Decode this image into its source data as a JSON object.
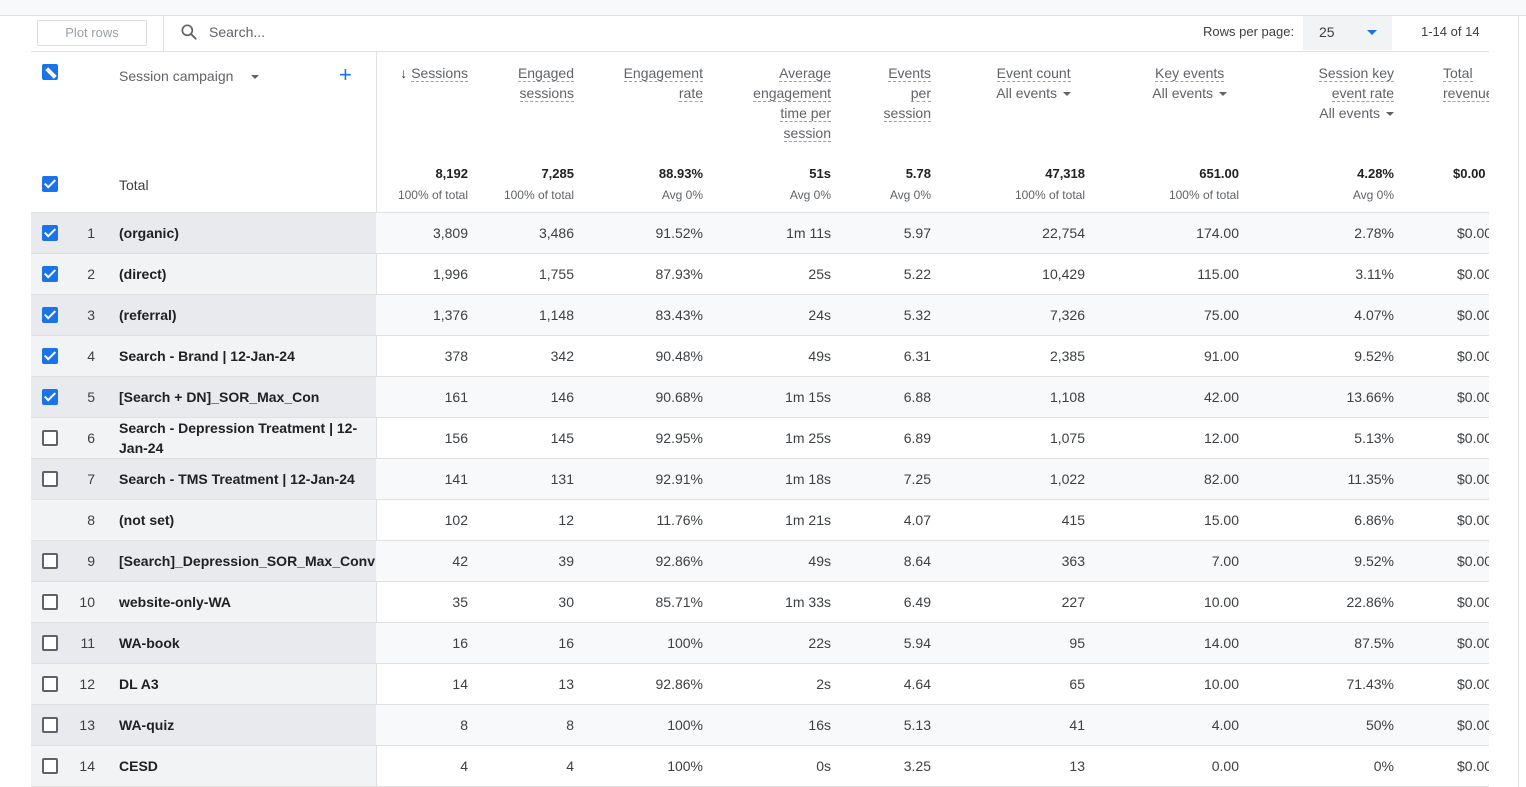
{
  "toolbar": {
    "plot_rows_label": "Plot rows",
    "search_placeholder": "Search...",
    "rows_per_page_label": "Rows per page:",
    "rows_per_page_value": "25",
    "pagination": "1-14 of 14"
  },
  "dimension_header": "Session campaign",
  "columns": {
    "sessions": "Sessions",
    "engaged_l1": "Engaged",
    "engaged_l2": "sessions",
    "engrate_l1": "Engagement",
    "engrate_l2": "rate",
    "avgeng_l1": "Average",
    "avgeng_l2": "engagement",
    "avgeng_l3": "time per",
    "avgeng_l4": "session",
    "eps_l1": "Events",
    "eps_l2": "per",
    "eps_l3": "session",
    "eventcount": "Event count",
    "eventcount_filter": "All events",
    "keyevents": "Key events",
    "keyevents_filter": "All events",
    "skr_l1": "Session key",
    "skr_l2": "event rate",
    "skr_filter": "All events",
    "rev_l1": "Total",
    "rev_l2": "revenue"
  },
  "totals": {
    "label": "Total",
    "values": [
      "8,192",
      "7,285",
      "88.93%",
      "51s",
      "5.78",
      "47,318",
      "651.00",
      "4.28%",
      "$0.00"
    ],
    "pcts": [
      "100% of total",
      "100% of total",
      "Avg 0%",
      "Avg 0%",
      "Avg 0%",
      "100% of total",
      "100% of total",
      "Avg 0%",
      ""
    ]
  },
  "rows": [
    {
      "index": "1",
      "name": "(organic)",
      "checked": true,
      "values": [
        "3,809",
        "3,486",
        "91.52%",
        "1m 11s",
        "5.97",
        "22,754",
        "174.00",
        "2.78%",
        "$0.00"
      ]
    },
    {
      "index": "2",
      "name": "(direct)",
      "checked": true,
      "values": [
        "1,996",
        "1,755",
        "87.93%",
        "25s",
        "5.22",
        "10,429",
        "115.00",
        "3.11%",
        "$0.00"
      ]
    },
    {
      "index": "3",
      "name": "(referral)",
      "checked": true,
      "values": [
        "1,376",
        "1,148",
        "83.43%",
        "24s",
        "5.32",
        "7,326",
        "75.00",
        "4.07%",
        "$0.00"
      ]
    },
    {
      "index": "4",
      "name": "Search - Brand | 12-Jan-24",
      "checked": true,
      "values": [
        "378",
        "342",
        "90.48%",
        "49s",
        "6.31",
        "2,385",
        "91.00",
        "9.52%",
        "$0.00"
      ]
    },
    {
      "index": "5",
      "name": "[Search + DN]_SOR_Max_Con",
      "checked": true,
      "values": [
        "161",
        "146",
        "90.68%",
        "1m 15s",
        "6.88",
        "1,108",
        "42.00",
        "13.66%",
        "$0.00"
      ]
    },
    {
      "index": "6",
      "name": "Search - Depression Treatment | 12-Jan-24",
      "checked": false,
      "values": [
        "156",
        "145",
        "92.95%",
        "1m 25s",
        "6.89",
        "1,075",
        "12.00",
        "5.13%",
        "$0.00"
      ]
    },
    {
      "index": "7",
      "name": "Search - TMS Treatment | 12-Jan-24",
      "checked": false,
      "values": [
        "141",
        "131",
        "92.91%",
        "1m 18s",
        "7.25",
        "1,022",
        "82.00",
        "11.35%",
        "$0.00"
      ]
    },
    {
      "index": "8",
      "name": "(not set)",
      "checked": null,
      "values": [
        "102",
        "12",
        "11.76%",
        "1m 21s",
        "4.07",
        "415",
        "15.00",
        "6.86%",
        "$0.00"
      ]
    },
    {
      "index": "9",
      "name": "[Search]_Depression_SOR_Max_Conv",
      "checked": false,
      "values": [
        "42",
        "39",
        "92.86%",
        "49s",
        "8.64",
        "363",
        "7.00",
        "9.52%",
        "$0.00"
      ]
    },
    {
      "index": "10",
      "name": "website-only-WA",
      "checked": false,
      "values": [
        "35",
        "30",
        "85.71%",
        "1m 33s",
        "6.49",
        "227",
        "10.00",
        "22.86%",
        "$0.00"
      ]
    },
    {
      "index": "11",
      "name": "WA-book",
      "checked": false,
      "values": [
        "16",
        "16",
        "100%",
        "22s",
        "5.94",
        "95",
        "14.00",
        "87.5%",
        "$0.00"
      ]
    },
    {
      "index": "12",
      "name": "DL A3",
      "checked": false,
      "values": [
        "14",
        "13",
        "92.86%",
        "2s",
        "4.64",
        "65",
        "10.00",
        "71.43%",
        "$0.00"
      ]
    },
    {
      "index": "13",
      "name": "WA-quiz",
      "checked": false,
      "values": [
        "8",
        "8",
        "100%",
        "16s",
        "5.13",
        "41",
        "4.00",
        "50%",
        "$0.00"
      ]
    },
    {
      "index": "14",
      "name": "CESD",
      "checked": false,
      "values": [
        "4",
        "4",
        "100%",
        "0s",
        "3.25",
        "13",
        "0.00",
        "0%",
        "$0.00"
      ]
    }
  ]
}
